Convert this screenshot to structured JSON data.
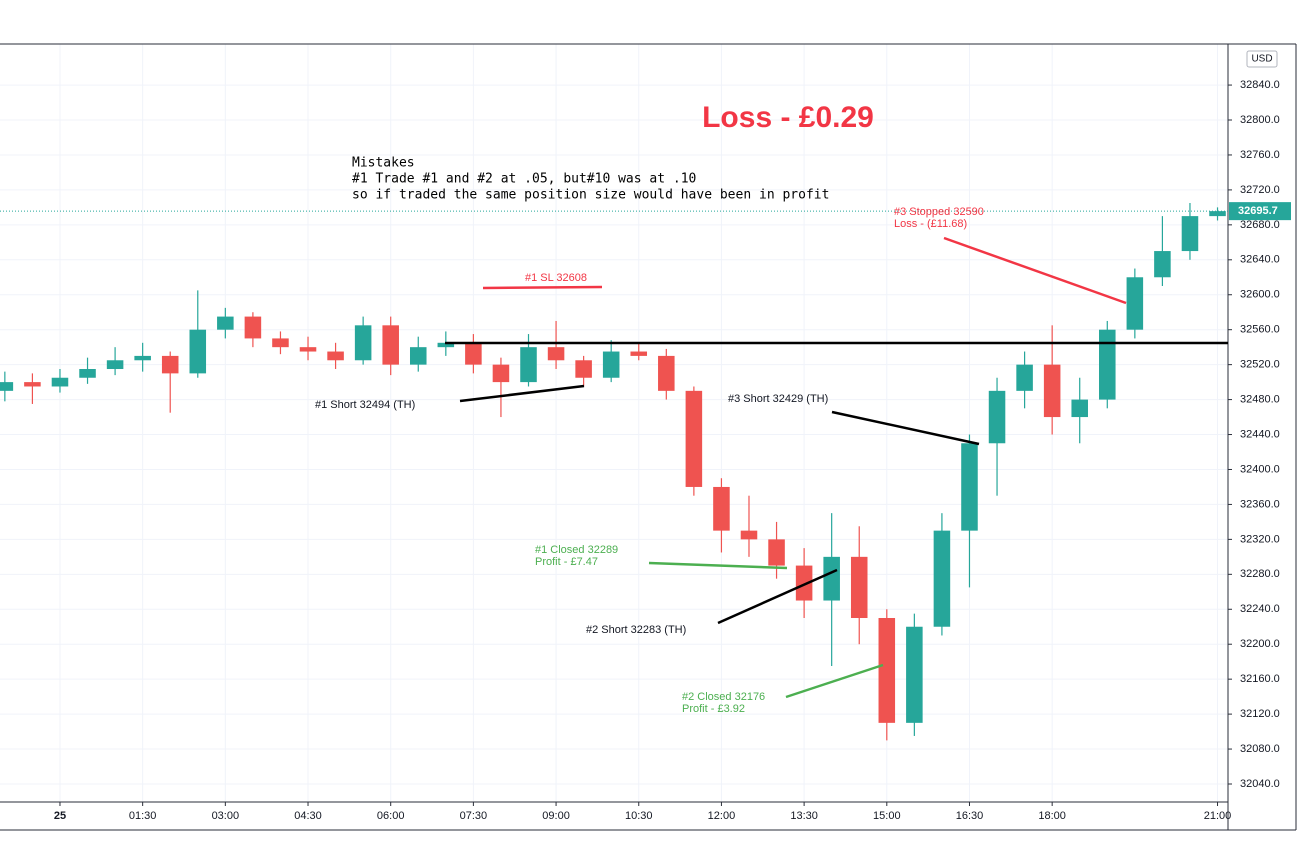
{
  "chart_data": {
    "type": "candlestick",
    "title": "Loss - £0.29",
    "notes": [
      "Mistakes",
      "#1 Trade #1 and #2 at .05, but#10 was at .10",
      "so if traded the same position size would have been in profit"
    ],
    "currency": "USD",
    "last_price": {
      "value": 32695.7,
      "label": "32695.7"
    },
    "annotations": {
      "sl1": "#1 SL 32608",
      "short1": "#1 Short 32494 (TH)",
      "short2": "#2 Short 32283 (TH)",
      "short3": "#3 Short 32429 (TH)",
      "closed1": [
        "#1 Closed 32289",
        "Profit - £7.47"
      ],
      "closed2": [
        "#2 Closed 32176",
        "Profit - £3.92"
      ],
      "stopped3": [
        "#3 Stopped 32590",
        "Loss - (£11.68)"
      ]
    },
    "up_color": "#26a69a",
    "down_color": "#ef5350",
    "x": [
      -1.0,
      -0.5,
      0,
      0.5,
      1.0,
      1.5,
      2.0,
      2.5,
      3.0,
      3.5,
      4.0,
      4.5,
      5.0,
      5.5,
      6.0,
      6.5,
      7.0,
      7.5,
      8.0,
      8.5,
      9.0,
      9.5,
      10.0,
      10.5,
      11.0,
      11.5,
      12.0,
      12.5,
      13.0,
      13.5,
      14.0,
      14.5,
      15.0,
      15.5,
      16.0,
      16.5,
      17.0,
      17.5,
      18.0,
      18.5,
      19.0,
      19.5,
      20.0,
      20.5,
      21.0
    ],
    "open": [
      32490,
      32500,
      32495,
      32505,
      32515,
      32525,
      32530,
      32510,
      32560,
      32575,
      32550,
      32540,
      32535,
      32525,
      32565,
      32520,
      32540,
      32545,
      32520,
      32500,
      32540,
      32525,
      32505,
      32535,
      32530,
      32490,
      32380,
      32330,
      32320,
      32290,
      32250,
      32300,
      32230,
      32110,
      32220,
      32330,
      32430,
      32490,
      32520,
      32460,
      32480,
      32560,
      32620,
      32650,
      32690
    ],
    "high": [
      32512,
      32510,
      32515,
      32528,
      32540,
      32545,
      32535,
      32605,
      32585,
      32580,
      32558,
      32552,
      32545,
      32575,
      32575,
      32552,
      32558,
      32555,
      32528,
      32555,
      32570,
      32530,
      32548,
      32545,
      32538,
      32495,
      32390,
      32370,
      32340,
      32310,
      32350,
      32335,
      32240,
      32235,
      32350,
      32440,
      32505,
      32535,
      32565,
      32505,
      32570,
      32630,
      32690,
      32705,
      32700
    ],
    "low": [
      32478,
      32475,
      32488,
      32498,
      32508,
      32512,
      32465,
      32505,
      32550,
      32540,
      32532,
      32525,
      32515,
      32520,
      32508,
      32512,
      32530,
      32510,
      32460,
      32495,
      32515,
      32495,
      32500,
      32525,
      32480,
      32370,
      32305,
      32300,
      32275,
      32230,
      32175,
      32200,
      32090,
      32095,
      32210,
      32265,
      32370,
      32470,
      32440,
      32430,
      32470,
      32550,
      32610,
      32640,
      32685
    ],
    "close": [
      32500,
      32495,
      32505,
      32515,
      32525,
      32530,
      32510,
      32560,
      32575,
      32550,
      32540,
      32535,
      32525,
      32565,
      32520,
      32540,
      32545,
      32520,
      32500,
      32540,
      32525,
      32505,
      32535,
      32530,
      32490,
      32380,
      32330,
      32320,
      32290,
      32250,
      32300,
      32230,
      32110,
      32220,
      32330,
      32430,
      32490,
      32520,
      32460,
      32480,
      32560,
      32620,
      32650,
      32690,
      32695.7
    ],
    "xlim": [
      -1.088,
      21.19
    ],
    "xticks": [
      {
        "value": 0,
        "label": "25"
      },
      {
        "value": 1.5,
        "label": "01:30"
      },
      {
        "value": 3,
        "label": "03:00"
      },
      {
        "value": 4.5,
        "label": "04:30"
      },
      {
        "value": 6,
        "label": "06:00"
      },
      {
        "value": 7.5,
        "label": "07:30"
      },
      {
        "value": 9,
        "label": "09:00"
      },
      {
        "value": 10.5,
        "label": "10:30"
      },
      {
        "value": 12,
        "label": "12:00"
      },
      {
        "value": 13.5,
        "label": "13:30"
      },
      {
        "value": 15,
        "label": "15:00"
      },
      {
        "value": 16.5,
        "label": "16:30"
      },
      {
        "value": 18,
        "label": "18:00"
      },
      {
        "value": 21,
        "label": "21:00"
      }
    ],
    "ylim": [
      32019.4,
      32887
    ],
    "yticks": [
      {
        "value": 32040,
        "label": "32040.0"
      },
      {
        "value": 32080,
        "label": "32080.0"
      },
      {
        "value": 32120,
        "label": "32120.0"
      },
      {
        "value": 32160,
        "label": "32160.0"
      },
      {
        "value": 32200,
        "label": "32200.0"
      },
      {
        "value": 32240,
        "label": "32240.0"
      },
      {
        "value": 32280,
        "label": "32280.0"
      },
      {
        "value": 32320,
        "label": "32320.0"
      },
      {
        "value": 32360,
        "label": "32360.0"
      },
      {
        "value": 32400,
        "label": "32400.0"
      },
      {
        "value": 32440,
        "label": "32440.0"
      },
      {
        "value": 32480,
        "label": "32480.0"
      },
      {
        "value": 32520,
        "label": "32520.0"
      },
      {
        "value": 32560,
        "label": "32560.0"
      },
      {
        "value": 32600,
        "label": "32600.0"
      },
      {
        "value": 32640,
        "label": "32640.0"
      },
      {
        "value": 32680,
        "label": "32680.0"
      },
      {
        "value": 32720,
        "label": "32720.0"
      },
      {
        "value": 32760,
        "label": "32760.0"
      },
      {
        "value": 32800,
        "label": "32800.0"
      },
      {
        "value": 32840,
        "label": "32840.0"
      }
    ],
    "grid": true
  }
}
